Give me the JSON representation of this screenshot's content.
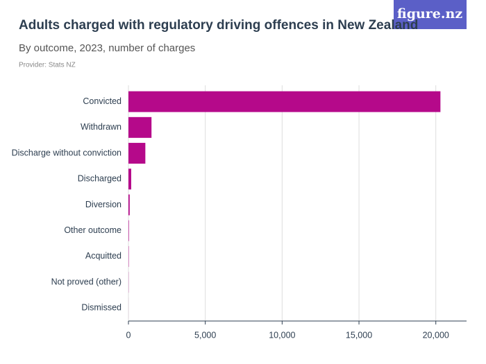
{
  "brand": "figure.nz",
  "chart_data": {
    "type": "bar",
    "orientation": "horizontal",
    "title": "Adults charged with regulatory driving offences in New Zealand",
    "subtitle": "By outcome, 2023, number of charges",
    "source": "Provider: Stats NZ",
    "categories": [
      "Convicted",
      "Withdrawn",
      "Discharge without conviction",
      "Discharged",
      "Diversion",
      "Other outcome",
      "Acquitted",
      "Not proved (other)",
      "Dismissed"
    ],
    "values": [
      20300,
      1500,
      1100,
      180,
      80,
      30,
      20,
      10,
      2
    ],
    "color": "#b5098a",
    "xlim": [
      0,
      22000
    ],
    "xticks": [
      0,
      {
        "value": 5000,
        "label": "5,000"
      },
      {
        "value": 10000,
        "label": "10,000"
      },
      {
        "value": 15000,
        "label": "15,000"
      },
      {
        "value": 20000,
        "label": "20,000"
      }
    ],
    "grid": true
  }
}
